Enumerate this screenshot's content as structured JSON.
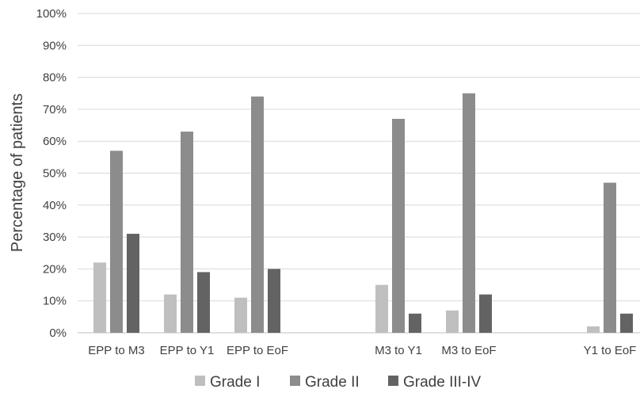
{
  "chart_data": {
    "type": "bar",
    "title": "",
    "xlabel": "",
    "ylabel": "Percentage of patients",
    "ylim": [
      0,
      100
    ],
    "yticks": [
      "0%",
      "10%",
      "20%",
      "30%",
      "40%",
      "50%",
      "60%",
      "70%",
      "80%",
      "90%",
      "100%"
    ],
    "grid": true,
    "legend": "bottom",
    "categories": [
      "EPP to M3",
      "EPP to Y1",
      "EPP to EoF",
      "M3 to Y1",
      "M3 to EoF",
      "Y1 to EoF"
    ],
    "groups": [
      [
        "EPP to M3",
        "EPP to Y1",
        "EPP to EoF"
      ],
      [
        "M3 to Y1",
        "M3 to EoF"
      ],
      [
        "Y1 to EoF"
      ]
    ],
    "series": [
      {
        "name": "Grade I",
        "color": "#bfbfbf",
        "values": [
          22,
          12,
          11,
          15,
          7,
          2
        ]
      },
      {
        "name": "Grade II",
        "color": "#8c8c8c",
        "values": [
          57,
          63,
          74,
          67,
          75,
          47
        ]
      },
      {
        "name": "Grade III-IV",
        "color": "#636363",
        "values": [
          31,
          19,
          20,
          6,
          12,
          6
        ]
      }
    ]
  }
}
